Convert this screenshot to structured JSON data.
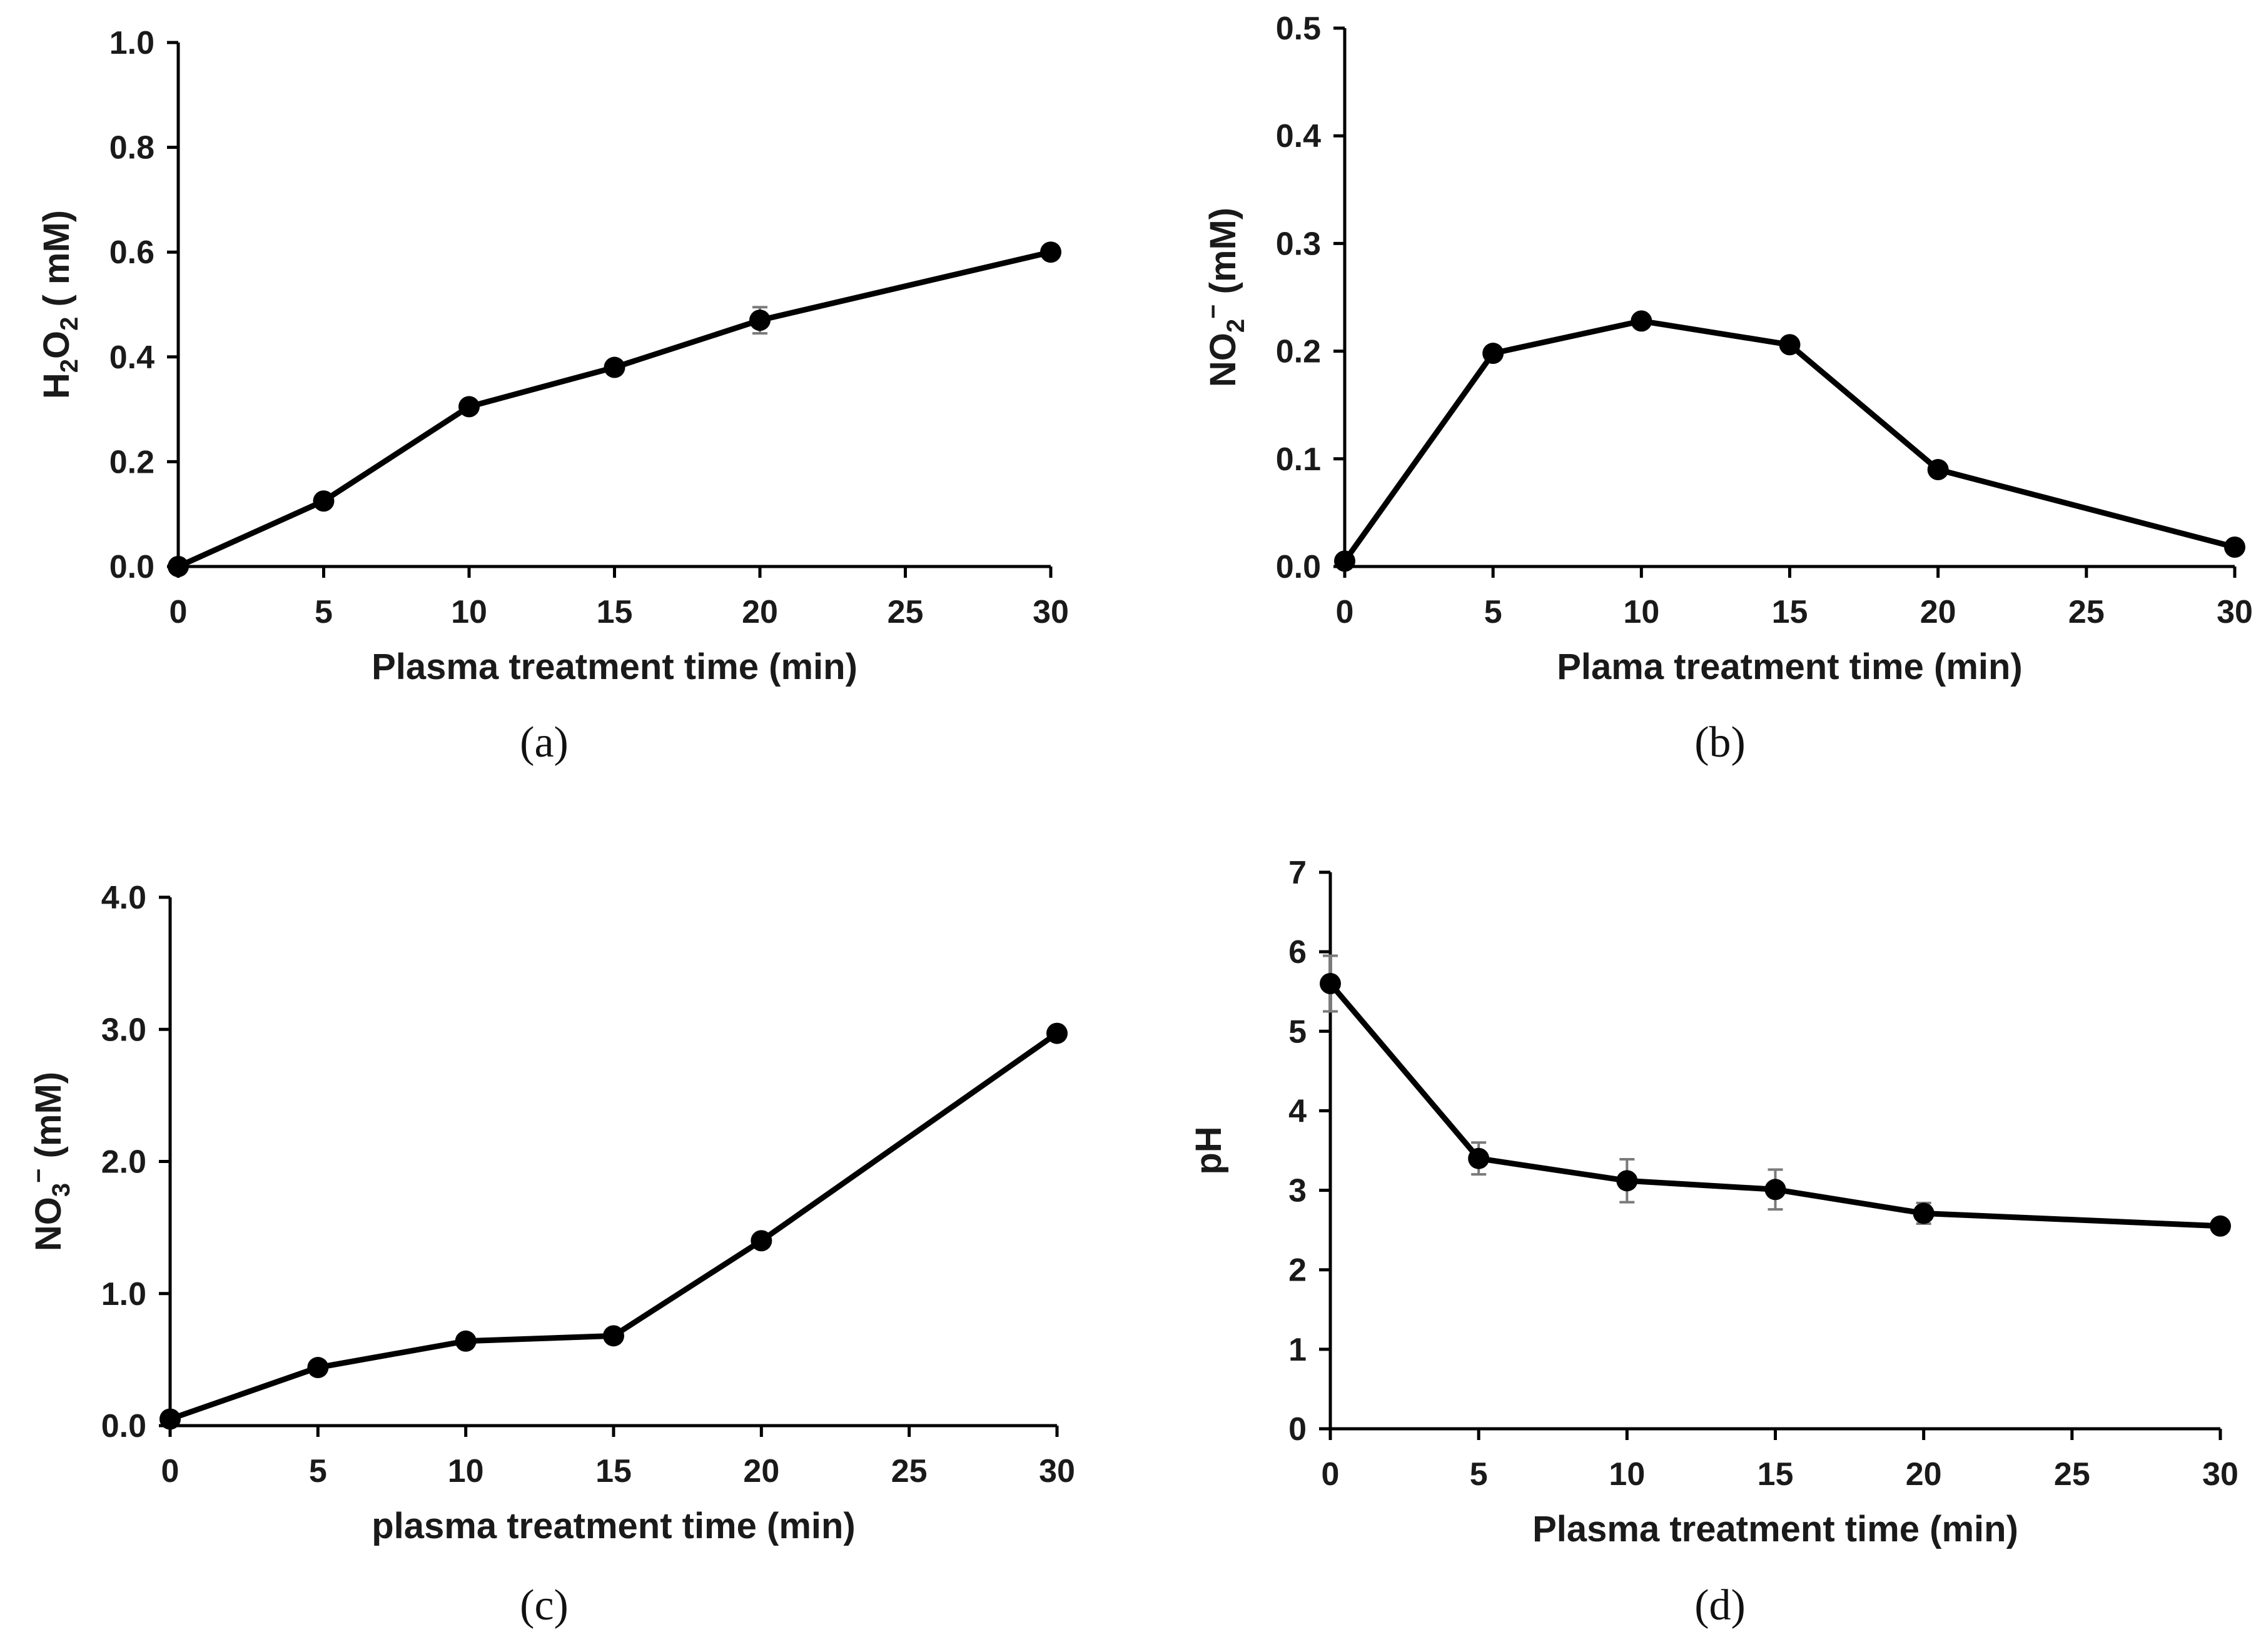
{
  "chart_data": [
    {
      "id": "a",
      "type": "line",
      "panel_label": "(a)",
      "xlabel": "Plasma treatment time (min)",
      "ylabel": {
        "parts": [
          {
            "t": "H"
          },
          {
            "t": "2",
            "sub": true
          },
          {
            "t": "O"
          },
          {
            "t": "2",
            "sub": true
          },
          {
            "t": " ( mM)"
          }
        ]
      },
      "xlim": [
        0,
        30
      ],
      "ylim": [
        0,
        1.0
      ],
      "xticks": [
        0,
        5,
        10,
        15,
        20,
        25,
        30
      ],
      "yticks": [
        "0.0",
        "0.2",
        "0.4",
        "0.6",
        "0.8",
        "1.0"
      ],
      "series": [
        {
          "name": "H2O2",
          "x": [
            0,
            5,
            10,
            15,
            20,
            30
          ],
          "y": [
            0.0,
            0.125,
            0.305,
            0.38,
            0.47,
            0.6
          ],
          "err": [
            0,
            0,
            0,
            0,
            0.025,
            0
          ]
        }
      ]
    },
    {
      "id": "b",
      "type": "line",
      "panel_label": "(b)",
      "xlabel": "Plama treatment time (min)",
      "ylabel": {
        "parts": [
          {
            "t": "NO"
          },
          {
            "t": "2",
            "sub": true
          },
          {
            "t": "−",
            "sup": true
          },
          {
            "t": " (mM)"
          }
        ]
      },
      "xlim": [
        0,
        30
      ],
      "ylim": [
        0,
        0.5
      ],
      "xticks": [
        0,
        5,
        10,
        15,
        20,
        25,
        30
      ],
      "yticks": [
        "0.0",
        "0.1",
        "0.2",
        "0.3",
        "0.4",
        "0.5"
      ],
      "series": [
        {
          "name": "NO2-",
          "x": [
            0,
            5,
            10,
            15,
            20,
            30
          ],
          "y": [
            0.005,
            0.198,
            0.228,
            0.206,
            0.09,
            0.018
          ],
          "err": [
            0,
            0,
            0,
            0,
            0,
            0
          ]
        }
      ]
    },
    {
      "id": "c",
      "type": "line",
      "panel_label": "(c)",
      "xlabel": "plasma treatment time (min)",
      "ylabel": {
        "parts": [
          {
            "t": "NO"
          },
          {
            "t": "3",
            "sub": true
          },
          {
            "t": "−",
            "sup": true
          },
          {
            "t": " (mM)"
          }
        ]
      },
      "xlim": [
        0,
        30
      ],
      "ylim": [
        0,
        4.0
      ],
      "xticks": [
        0,
        5,
        10,
        15,
        20,
        25,
        30
      ],
      "yticks": [
        "0.0",
        "1.0",
        "2.0",
        "3.0",
        "4.0"
      ],
      "series": [
        {
          "name": "NO3-",
          "x": [
            0,
            5,
            10,
            15,
            20,
            30
          ],
          "y": [
            0.05,
            0.44,
            0.64,
            0.68,
            1.4,
            2.97
          ],
          "err": [
            0,
            0,
            0,
            0,
            0,
            0
          ]
        }
      ]
    },
    {
      "id": "d",
      "type": "line",
      "panel_label": "(d)",
      "xlabel": "Plasma treatment time (min)",
      "ylabel": {
        "parts": [
          {
            "t": "pH"
          }
        ]
      },
      "xlim": [
        0,
        30
      ],
      "ylim": [
        0,
        7
      ],
      "xticks": [
        0,
        5,
        10,
        15,
        20,
        25,
        30
      ],
      "yticks": [
        "0",
        "1",
        "2",
        "3",
        "4",
        "5",
        "6",
        "7"
      ],
      "series": [
        {
          "name": "pH",
          "x": [
            0,
            5,
            10,
            15,
            20,
            30
          ],
          "y": [
            5.6,
            3.4,
            3.12,
            3.01,
            2.71,
            2.55
          ],
          "err": [
            0.35,
            0.2,
            0.27,
            0.25,
            0.13,
            0
          ]
        }
      ]
    }
  ]
}
